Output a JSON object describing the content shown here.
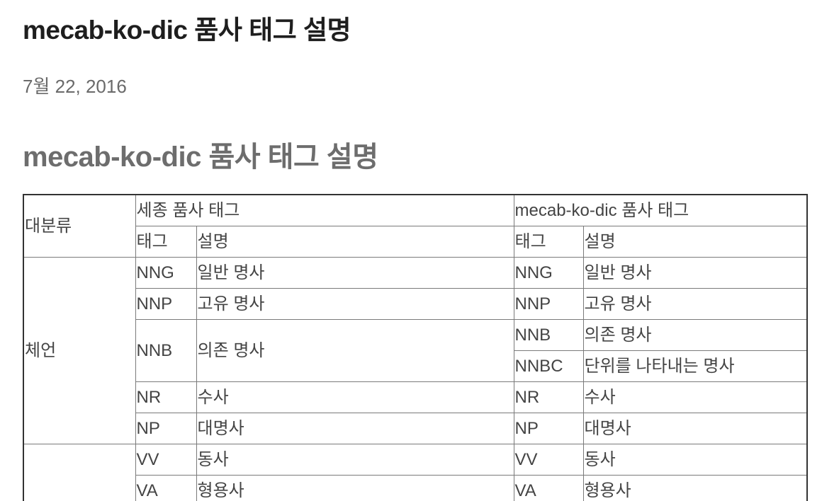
{
  "header": {
    "title": "mecab-ko-dic 품사 태그 설명",
    "date": "7월 22, 2016"
  },
  "section": {
    "heading": "mecab-ko-dic 품사 태그 설명"
  },
  "table": {
    "major_category_header": "대분류",
    "sejong_header": "세종 품사 태그",
    "mecab_header": "mecab-ko-dic 품사 태그",
    "tag_col": "태그",
    "desc_col": "설명",
    "group_che_eon": "체언",
    "group_yong_eon": "",
    "rows": [
      {
        "sejong_tag": "NNG",
        "sejong_desc": "일반 명사",
        "mecab_tag": "NNG",
        "mecab_desc": "일반 명사"
      },
      {
        "sejong_tag": "NNP",
        "sejong_desc": "고유 명사",
        "mecab_tag": "NNP",
        "mecab_desc": "고유 명사"
      },
      {
        "sejong_tag": "NNB",
        "sejong_desc": "의존 명사",
        "mecab_tag": "NNB",
        "mecab_desc": "의존 명사"
      },
      {
        "mecab_tag": "NNBC",
        "mecab_desc": "단위를 나타내는 명사"
      },
      {
        "sejong_tag": "NR",
        "sejong_desc": "수사",
        "mecab_tag": "NR",
        "mecab_desc": "수사"
      },
      {
        "sejong_tag": "NP",
        "sejong_desc": "대명사",
        "mecab_tag": "NP",
        "mecab_desc": "대명사"
      },
      {
        "sejong_tag": "VV",
        "sejong_desc": "동사",
        "mecab_tag": "VV",
        "mecab_desc": "동사"
      },
      {
        "sejong_tag": "VA",
        "sejong_desc": "형용사",
        "mecab_tag": "VA",
        "mecab_desc": "형용사"
      }
    ]
  }
}
